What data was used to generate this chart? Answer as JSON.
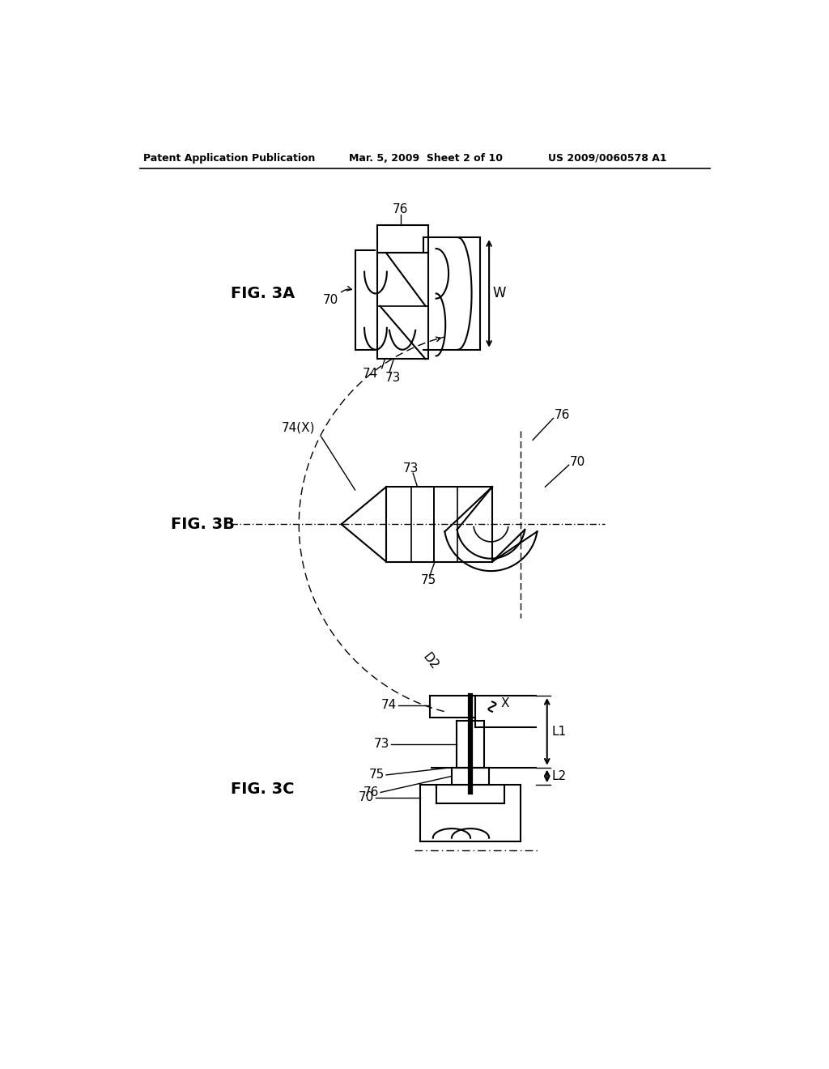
{
  "header_left": "Patent Application Publication",
  "header_center": "Mar. 5, 2009  Sheet 2 of 10",
  "header_right": "US 2009/0060578 A1",
  "fig3a_label": "FIG. 3A",
  "fig3b_label": "FIG. 3B",
  "fig3c_label": "FIG. 3C",
  "bg_color": "#ffffff",
  "line_color": "#000000"
}
